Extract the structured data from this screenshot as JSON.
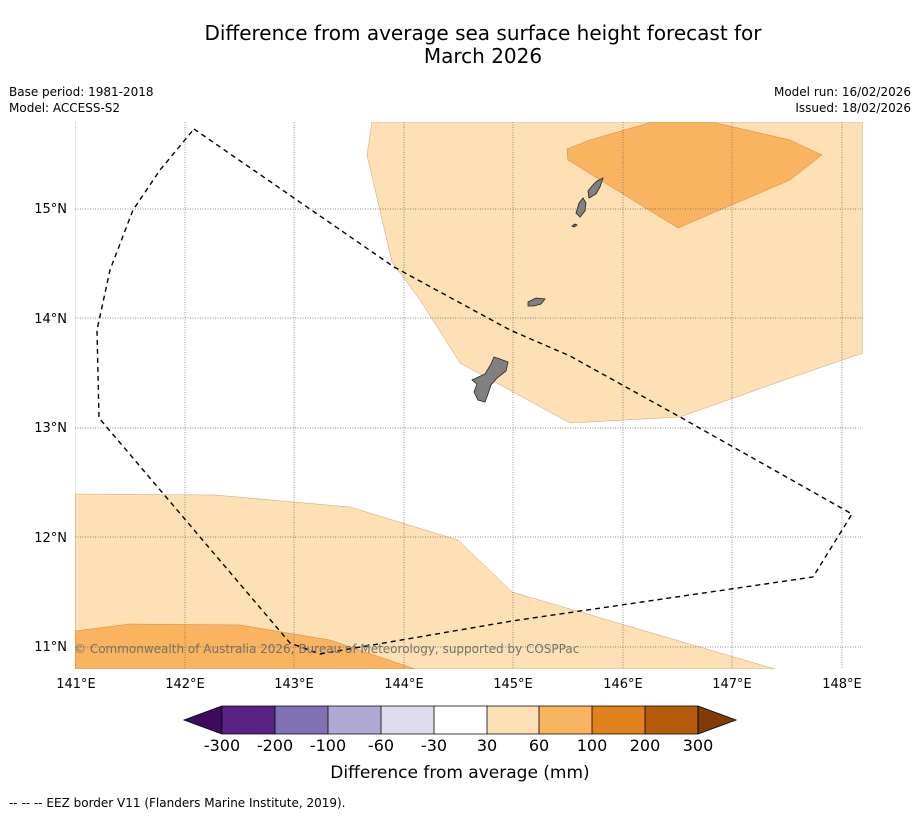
{
  "title": {
    "line1": "Difference from average sea surface height forecast for",
    "line2": "March 2026"
  },
  "meta_left": {
    "base_period": "Base period: 1981-2018",
    "model": "Model: ACCESS-S2"
  },
  "meta_right": {
    "model_run": "Model run: 16/02/2026",
    "issued": "Issued: 18/02/2026"
  },
  "map": {
    "lon_labels": [
      "141°E",
      "142°E",
      "143°E",
      "144°E",
      "145°E",
      "146°E",
      "147°E",
      "148°E"
    ],
    "lat_labels": [
      "15°N",
      "14°N",
      "13°N",
      "12°N",
      "11°N"
    ],
    "copyright": "© Commonwealth of Australia 2026, Bureau of Meteorology, supported by COSPPac",
    "colors": {
      "light_orange": "#fde0b4",
      "orange": "#fab45f",
      "land": "#808080"
    }
  },
  "colorbar": {
    "title": "Difference from average (mm)",
    "tick_labels": [
      "-300",
      "-200",
      "-100",
      "-60",
      "-30",
      "30",
      "60",
      "100",
      "200",
      "300"
    ],
    "colors": [
      "#3d0a5d",
      "#582383",
      "#8171b2",
      "#b0a9d3",
      "#dcdcec",
      "#ffffff",
      "#fde0b4",
      "#fab45f",
      "#e0821c",
      "#b55a0a",
      "#7f3b08"
    ]
  },
  "footer": {
    "legend_text": "--  --  -- EEZ border V11 (Flanders Marine Institute, 2019)."
  }
}
